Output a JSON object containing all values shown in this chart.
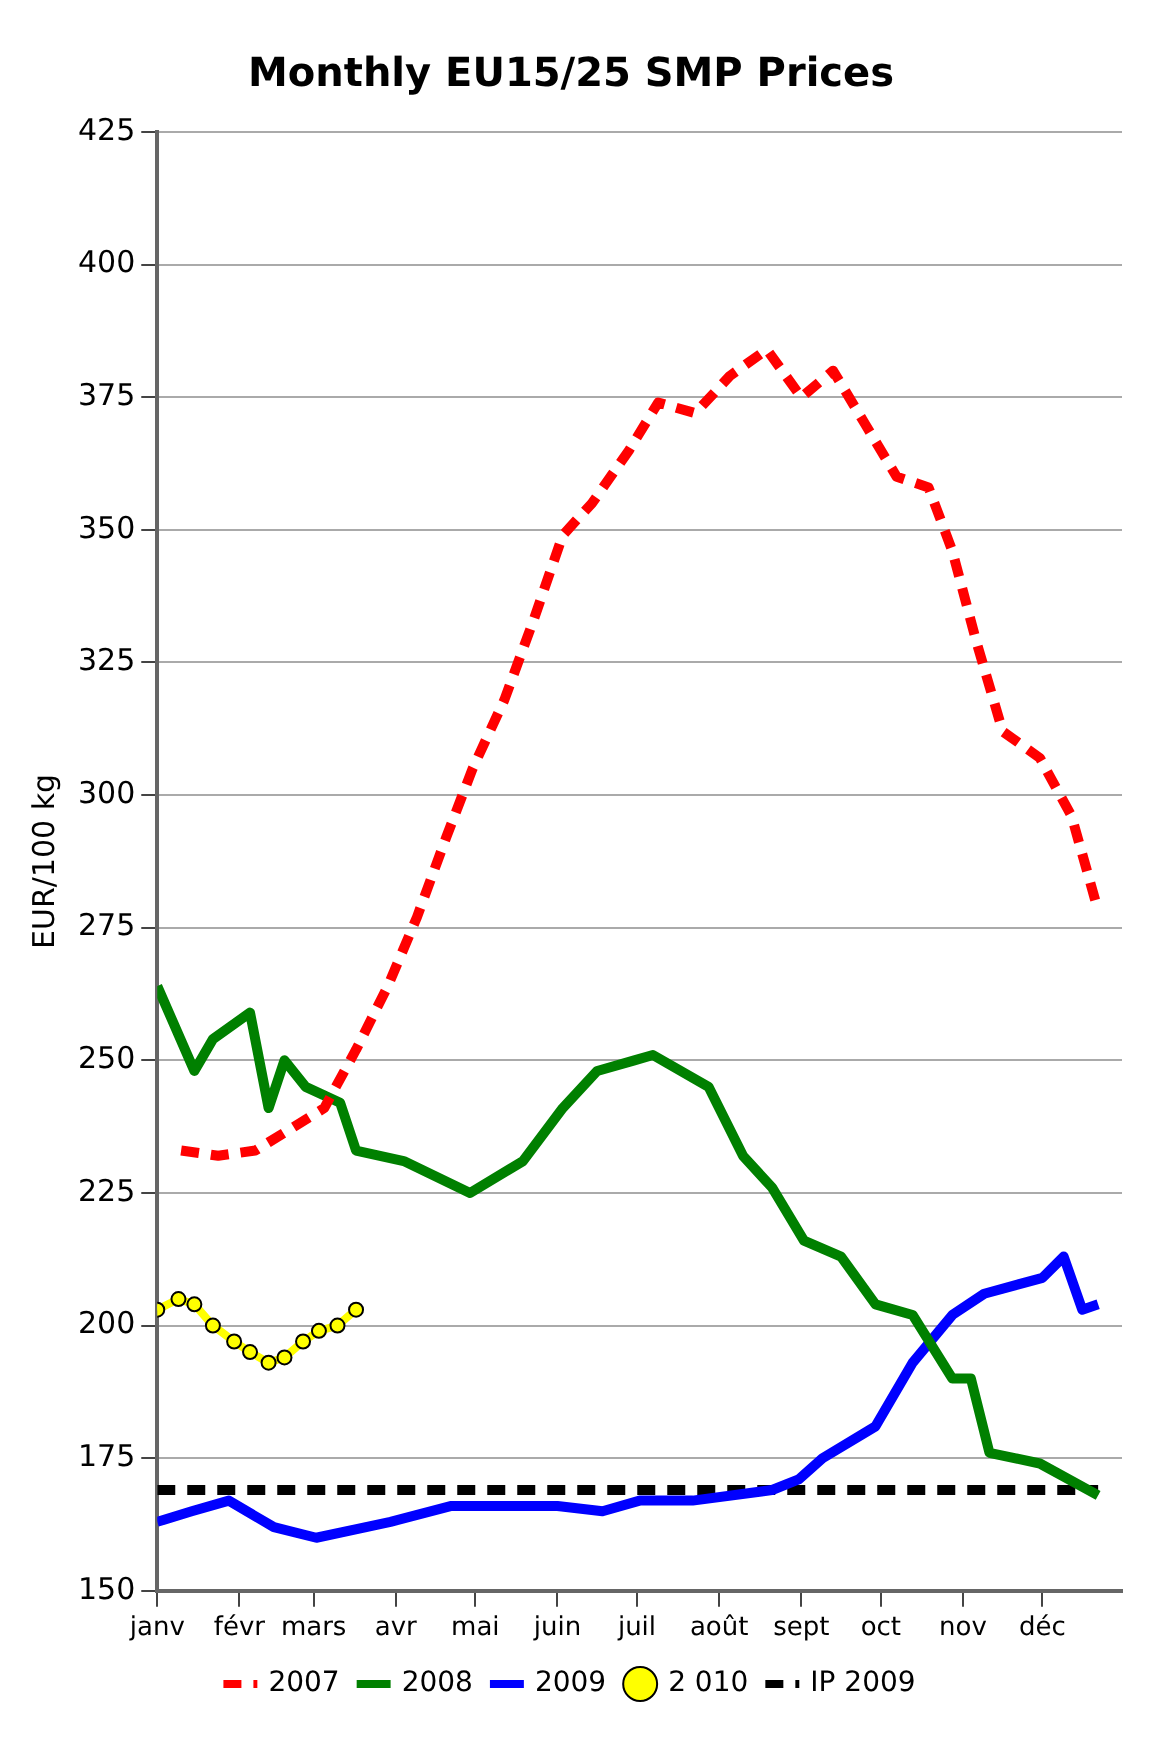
{
  "chart_data": {
    "type": "line",
    "title": "Monthly EU15/25 SMP Prices",
    "ylabel": "EUR/100 kg",
    "xlim": [
      "--01-01",
      "--12-31"
    ],
    "xticks": [
      {
        "value": "--01-01",
        "label": "janv"
      },
      {
        "value": "--02-01",
        "label": "févr"
      },
      {
        "value": "--03-01",
        "label": "mars"
      },
      {
        "value": "--04-01",
        "label": "avr"
      },
      {
        "value": "--05-01",
        "label": "mai"
      },
      {
        "value": "--06-01",
        "label": "juin"
      },
      {
        "value": "--07-01",
        "label": "juil"
      },
      {
        "value": "--08-01",
        "label": "août"
      },
      {
        "value": "--09-01",
        "label": "sept"
      },
      {
        "value": "--10-01",
        "label": "oct"
      },
      {
        "value": "--11-01",
        "label": "nov"
      },
      {
        "value": "--12-01",
        "label": "déc"
      }
    ],
    "ylim": [
      150,
      425
    ],
    "yticks": [
      150,
      175,
      200,
      225,
      250,
      275,
      300,
      325,
      350,
      375,
      400,
      425
    ],
    "grid": "y",
    "legend": "bottom",
    "marker": "none",
    "line_style": "solid",
    "series": [
      {
        "name": "2007",
        "color": "#ff0000",
        "line_style": "dashed",
        "x": [
          "--01-10",
          "--01-24",
          "--02-07",
          "--02-20",
          "--03-05",
          "--03-17",
          "--03-29",
          "--04-09",
          "--04-20",
          "--04-30",
          "--05-12",
          "--05-23",
          "--06-03",
          "--06-14",
          "--06-28",
          "--07-09",
          "--07-23",
          "--08-05",
          "--08-19",
          "--09-01",
          "--09-13",
          "--09-25",
          "--10-07",
          "--10-19",
          "--10-28",
          "--11-06",
          "--11-16",
          "--11-30",
          "--12-12",
          "--12-21"
        ],
        "values": [
          233,
          232,
          233,
          237,
          241,
          252,
          264,
          277,
          292,
          305,
          318,
          333,
          349,
          355,
          365,
          374,
          372,
          379,
          384,
          375,
          380,
          370,
          360,
          358,
          346,
          329,
          312,
          307,
          296,
          280
        ]
      },
      {
        "name": "2008",
        "color": "#008000",
        "x": [
          "--01-01",
          "--01-15",
          "--01-22",
          "--02-05",
          "--02-12",
          "--02-18",
          "--02-26",
          "--03-11",
          "--03-17",
          "--04-04",
          "--04-29",
          "--05-19",
          "--06-03",
          "--06-16",
          "--06-30",
          "--07-07",
          "--07-28",
          "--08-10",
          "--08-21",
          "--09-02",
          "--09-16",
          "--09-29",
          "--10-13",
          "--10-28",
          "--11-04",
          "--11-11",
          "--11-30",
          "--12-22"
        ],
        "values": [
          264,
          248,
          254,
          259,
          241,
          250,
          245,
          242,
          233,
          231,
          225,
          231,
          241,
          248,
          250,
          251,
          245,
          232,
          226,
          216,
          213,
          204,
          202,
          190,
          190,
          176,
          174,
          168
        ]
      },
      {
        "name": "2009",
        "color": "#0000ff",
        "x": [
          "--01-01",
          "--01-14",
          "--01-28",
          "--02-14",
          "--03-02",
          "--03-30",
          "--04-22",
          "--06-01",
          "--06-18",
          "--07-02",
          "--07-22",
          "--08-21",
          "--08-31",
          "--09-09",
          "--09-29",
          "--10-13",
          "--10-28",
          "--11-09",
          "--12-01",
          "--12-09",
          "--12-16",
          "--12-22"
        ],
        "values": [
          163,
          165,
          167,
          162,
          160,
          163,
          166,
          166,
          165,
          167,
          167,
          169,
          171,
          175,
          181,
          193,
          202,
          206,
          209,
          213,
          203,
          204
        ]
      },
      {
        "name": "2 010",
        "color": "#ffff00",
        "marker": "circle",
        "x": [
          "--01-01",
          "--01-09",
          "--01-15",
          "--01-22",
          "--01-30",
          "--02-05",
          "--02-12",
          "--02-18",
          "--02-25",
          "--03-03",
          "--03-10",
          "--03-17"
        ],
        "values": [
          203,
          205,
          204,
          200,
          197,
          195,
          193,
          194,
          197,
          199,
          200,
          203
        ]
      },
      {
        "name": "IP 2009",
        "color": "#000000",
        "line_style": "dashed",
        "x": [
          "--01-01",
          "--12-22"
        ],
        "values": [
          169,
          169
        ]
      }
    ]
  }
}
